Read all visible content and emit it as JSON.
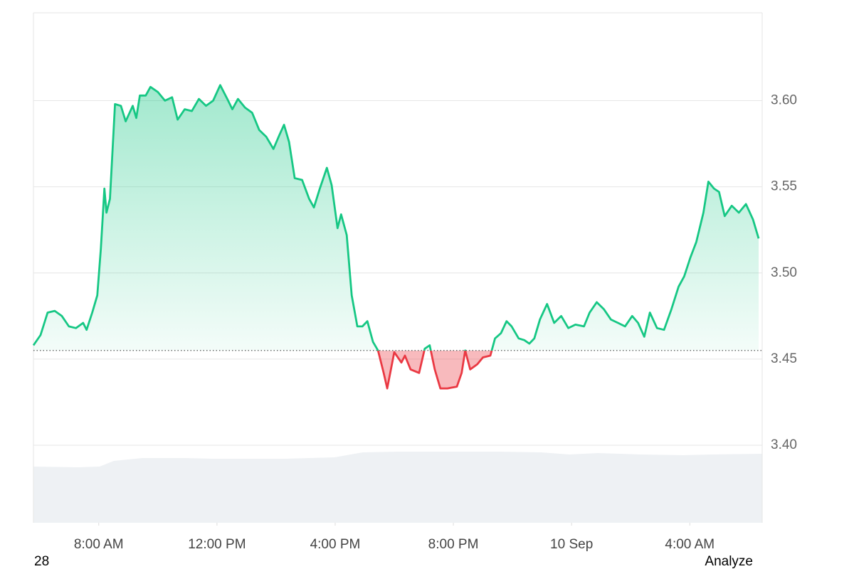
{
  "chart_data": {
    "type": "line",
    "x": [
      5.79,
      6.03,
      6.27,
      6.51,
      6.75,
      6.99,
      7.23,
      7.47,
      7.59,
      7.78,
      7.95,
      8.07,
      8.19,
      8.26,
      8.38,
      8.55,
      8.75,
      8.91,
      9.15,
      9.27,
      9.39,
      9.59,
      9.75,
      10.0,
      10.24,
      10.48,
      10.67,
      10.91,
      11.15,
      11.39,
      11.63,
      11.87,
      12.11,
      12.35,
      12.52,
      12.71,
      12.95,
      13.19,
      13.43,
      13.67,
      13.91,
      14.11,
      14.27,
      14.44,
      14.63,
      14.88,
      15.12,
      15.28,
      15.48,
      15.72,
      15.88,
      16.08,
      16.2,
      16.39,
      16.56,
      16.75,
      16.92,
      17.09,
      17.28,
      17.45,
      17.64,
      17.76,
      18.0,
      18.24,
      18.36,
      18.55,
      18.84,
      19.03,
      19.2,
      19.37,
      19.56,
      19.8,
      20.12,
      20.28,
      20.4,
      20.57,
      20.81,
      21.0,
      21.25,
      21.41,
      21.61,
      21.8,
      21.97,
      22.21,
      22.4,
      22.57,
      22.74,
      22.93,
      23.17,
      23.41,
      23.65,
      23.89,
      24.13,
      24.42,
      24.61,
      24.85,
      25.09,
      25.33,
      25.57,
      25.81,
      26.05,
      26.25,
      26.46,
      26.65,
      26.89,
      27.13,
      27.38,
      27.62,
      27.81,
      28.02,
      28.22,
      28.46,
      28.63,
      28.82,
      28.99,
      29.18,
      29.42,
      29.66,
      29.9,
      30.14,
      30.33
    ],
    "values": [
      3.458,
      3.464,
      3.477,
      3.478,
      3.475,
      3.469,
      3.468,
      3.471,
      3.467,
      3.477,
      3.487,
      3.514,
      3.549,
      3.535,
      3.543,
      3.598,
      3.597,
      3.588,
      3.597,
      3.59,
      3.603,
      3.603,
      3.608,
      3.605,
      3.6,
      3.602,
      3.589,
      3.595,
      3.594,
      3.601,
      3.597,
      3.6,
      3.609,
      3.601,
      3.595,
      3.601,
      3.596,
      3.593,
      3.583,
      3.579,
      3.572,
      3.58,
      3.586,
      3.576,
      3.555,
      3.554,
      3.543,
      3.538,
      3.549,
      3.561,
      3.551,
      3.526,
      3.534,
      3.522,
      3.487,
      3.469,
      3.469,
      3.472,
      3.46,
      3.455,
      3.442,
      3.433,
      3.454,
      3.448,
      3.452,
      3.444,
      3.442,
      3.456,
      3.458,
      3.444,
      3.433,
      3.433,
      3.434,
      3.442,
      3.455,
      3.444,
      3.447,
      3.451,
      3.452,
      3.462,
      3.465,
      3.472,
      3.469,
      3.462,
      3.461,
      3.459,
      3.462,
      3.473,
      3.482,
      3.471,
      3.475,
      3.468,
      3.47,
      3.469,
      3.477,
      3.483,
      3.479,
      3.473,
      3.471,
      3.469,
      3.475,
      3.471,
      3.463,
      3.477,
      3.468,
      3.467,
      3.479,
      3.492,
      3.498,
      3.509,
      3.518,
      3.535,
      3.553,
      3.549,
      3.547,
      3.533,
      3.539,
      3.535,
      3.54,
      3.531,
      3.52
    ],
    "color": "#16c784",
    "down_color": "#ea3943",
    "baseline": 3.455,
    "xlim": [
      5.79,
      30.45
    ],
    "ylim": [
      3.355,
      3.651
    ],
    "xticks": [
      {
        "value": 8,
        "label": "8:00 AM"
      },
      {
        "value": 12,
        "label": "12:00 PM"
      },
      {
        "value": 16,
        "label": "4:00 PM"
      },
      {
        "value": 20,
        "label": "8:00 PM"
      },
      {
        "value": 24,
        "label": "10 Sep"
      },
      {
        "value": 28,
        "label": "4:00 AM"
      }
    ],
    "yticks": [
      {
        "value": 3.4,
        "label": "3.40"
      },
      3.45,
      {
        "value": 3.5,
        "label": "3.50"
      },
      3.55,
      {
        "value": 3.6,
        "label": "3.60"
      }
    ],
    "grid": true
  },
  "footer": {
    "left": "28",
    "right": "Analyze"
  }
}
